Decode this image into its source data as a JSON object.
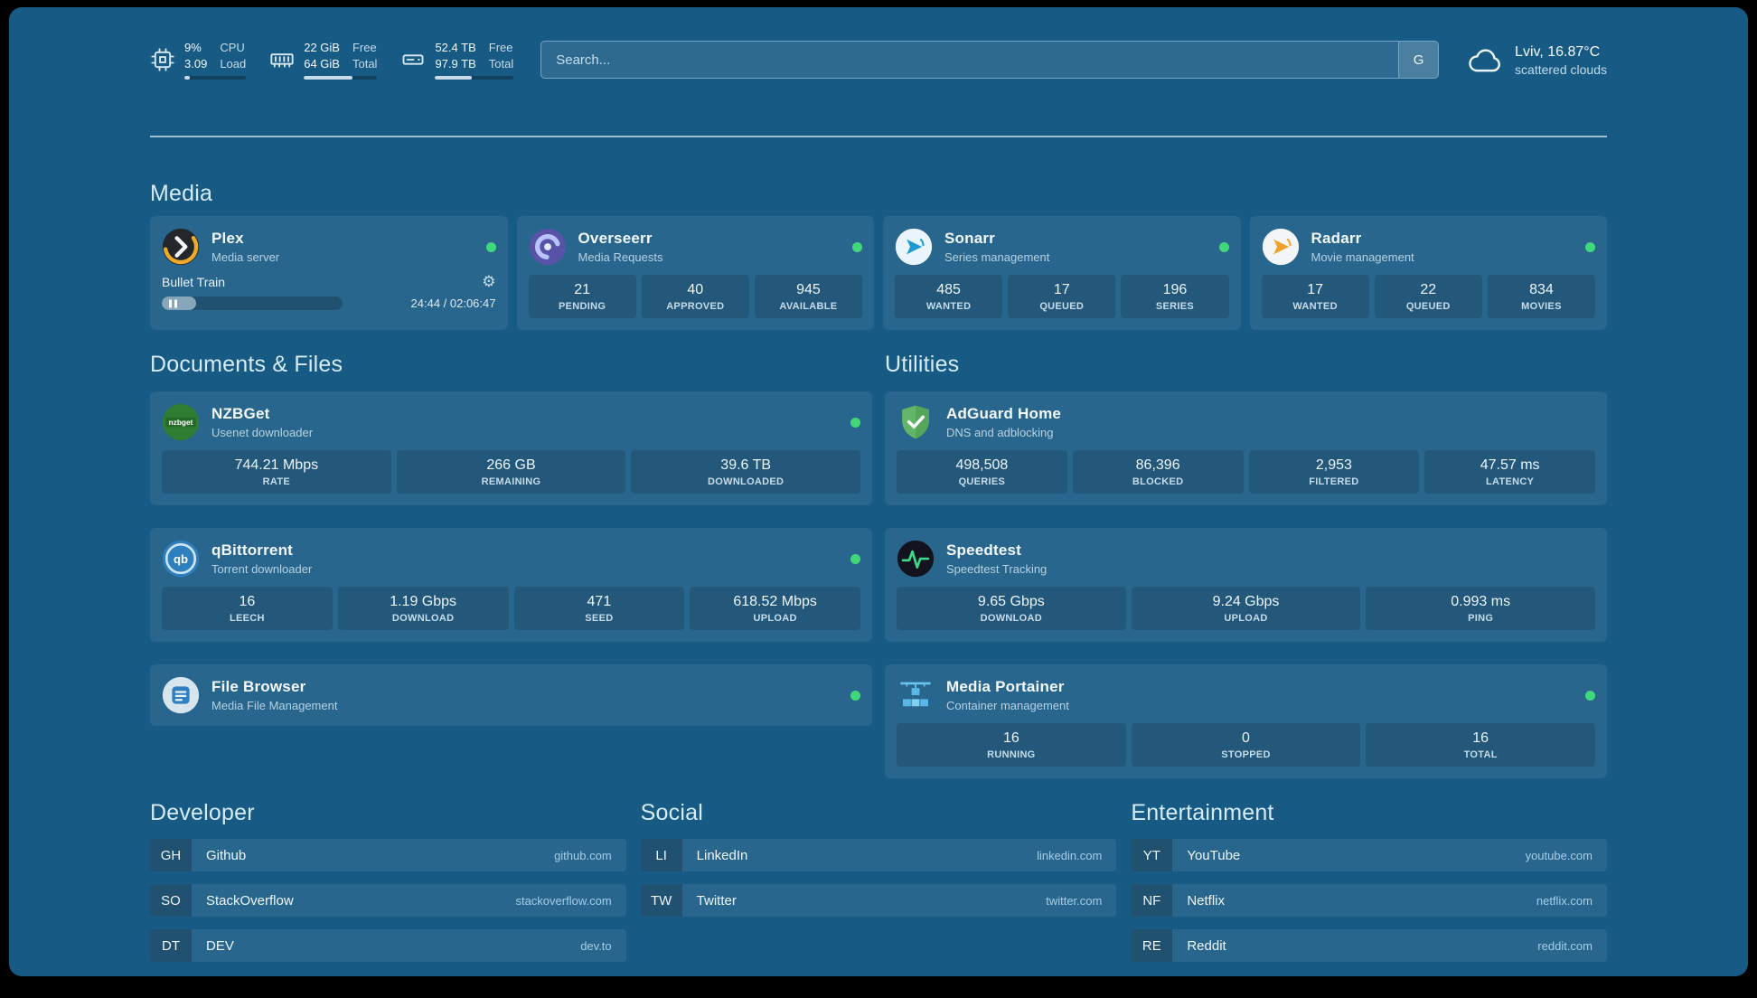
{
  "colors": {
    "background": "#175a84",
    "status_online": "#41d87b",
    "plex_orange": "#eea92b",
    "radarr_orange": "#f0a32a",
    "sonarr_blue": "#1b9ad2",
    "adguard_green": "#63b568",
    "speedtest_green": "#3bd98a"
  },
  "topbar": {
    "cpu": {
      "values": [
        "9%",
        "3.09"
      ],
      "labels": [
        "CPU",
        "Load"
      ],
      "progress_pct": 9
    },
    "memory": {
      "values": [
        "22 GiB",
        "64 GiB"
      ],
      "labels": [
        "Free",
        "Total"
      ],
      "progress_pct": 66
    },
    "disk": {
      "values": [
        "52.4 TB",
        "97.9 TB"
      ],
      "labels": [
        "Free",
        "Total"
      ],
      "progress_pct": 47
    },
    "search": {
      "placeholder": "Search...",
      "provider_label": "G"
    },
    "weather": {
      "location": "Lviv, 16.87°C",
      "condition": "scattered clouds"
    }
  },
  "media": {
    "title": "Media",
    "plex": {
      "name": "Plex",
      "subtitle": "Media server",
      "status": "online",
      "now_playing": "Bullet Train",
      "progress_pct": 19,
      "time": "24:44 / 02:06:47"
    },
    "overseerr": {
      "name": "Overseerr",
      "subtitle": "Media Requests",
      "status": "online",
      "stats": [
        {
          "value": "21",
          "label": "PENDING"
        },
        {
          "value": "40",
          "label": "APPROVED"
        },
        {
          "value": "945",
          "label": "AVAILABLE"
        }
      ]
    },
    "sonarr": {
      "name": "Sonarr",
      "subtitle": "Series management",
      "status": "online",
      "stats": [
        {
          "value": "485",
          "label": "WANTED"
        },
        {
          "value": "17",
          "label": "QUEUED"
        },
        {
          "value": "196",
          "label": "SERIES"
        }
      ]
    },
    "radarr": {
      "name": "Radarr",
      "subtitle": "Movie management",
      "status": "online",
      "stats": [
        {
          "value": "17",
          "label": "WANTED"
        },
        {
          "value": "22",
          "label": "QUEUED"
        },
        {
          "value": "834",
          "label": "MOVIES"
        }
      ]
    }
  },
  "documents": {
    "title": "Documents & Files",
    "nzbget": {
      "name": "NZBGet",
      "subtitle": "Usenet downloader",
      "status": "online",
      "icon_text": "nzbget",
      "stats": [
        {
          "value": "744.21 Mbps",
          "label": "RATE"
        },
        {
          "value": "266 GB",
          "label": "REMAINING"
        },
        {
          "value": "39.6 TB",
          "label": "DOWNLOADED"
        }
      ]
    },
    "qbittorrent": {
      "name": "qBittorrent",
      "subtitle": "Torrent downloader",
      "status": "online",
      "icon_text": "qb",
      "stats": [
        {
          "value": "16",
          "label": "LEECH"
        },
        {
          "value": "1.19 Gbps",
          "label": "DOWNLOAD"
        },
        {
          "value": "471",
          "label": "SEED"
        },
        {
          "value": "618.52 Mbps",
          "label": "UPLOAD"
        }
      ]
    },
    "filebrowser": {
      "name": "File Browser",
      "subtitle": "Media File Management",
      "status": "online"
    }
  },
  "utilities": {
    "title": "Utilities",
    "adguard": {
      "name": "AdGuard Home",
      "subtitle": "DNS and adblocking",
      "stats": [
        {
          "value": "498,508",
          "label": "QUERIES"
        },
        {
          "value": "86,396",
          "label": "BLOCKED"
        },
        {
          "value": "2,953",
          "label": "FILTERED"
        },
        {
          "value": "47.57 ms",
          "label": "LATENCY"
        }
      ]
    },
    "speedtest": {
      "name": "Speedtest",
      "subtitle": "Speedtest Tracking",
      "stats": [
        {
          "value": "9.65 Gbps",
          "label": "DOWNLOAD"
        },
        {
          "value": "9.24 Gbps",
          "label": "UPLOAD"
        },
        {
          "value": "0.993 ms",
          "label": "PING"
        }
      ]
    },
    "portainer": {
      "name": "Media Portainer",
      "subtitle": "Container management",
      "status": "online",
      "stats": [
        {
          "value": "16",
          "label": "RUNNING"
        },
        {
          "value": "0",
          "label": "STOPPED"
        },
        {
          "value": "16",
          "label": "TOTAL"
        }
      ]
    }
  },
  "bookmarks": {
    "developer": {
      "title": "Developer",
      "items": [
        {
          "abbr": "GH",
          "name": "Github",
          "domain": "github.com"
        },
        {
          "abbr": "SO",
          "name": "StackOverflow",
          "domain": "stackoverflow.com"
        },
        {
          "abbr": "DT",
          "name": "DEV",
          "domain": "dev.to"
        }
      ]
    },
    "social": {
      "title": "Social",
      "items": [
        {
          "abbr": "LI",
          "name": "LinkedIn",
          "domain": "linkedin.com"
        },
        {
          "abbr": "TW",
          "name": "Twitter",
          "domain": "twitter.com"
        }
      ]
    },
    "entertainment": {
      "title": "Entertainment",
      "items": [
        {
          "abbr": "YT",
          "name": "YouTube",
          "domain": "youtube.com"
        },
        {
          "abbr": "NF",
          "name": "Netflix",
          "domain": "netflix.com"
        },
        {
          "abbr": "RE",
          "name": "Reddit",
          "domain": "reddit.com"
        }
      ]
    }
  }
}
